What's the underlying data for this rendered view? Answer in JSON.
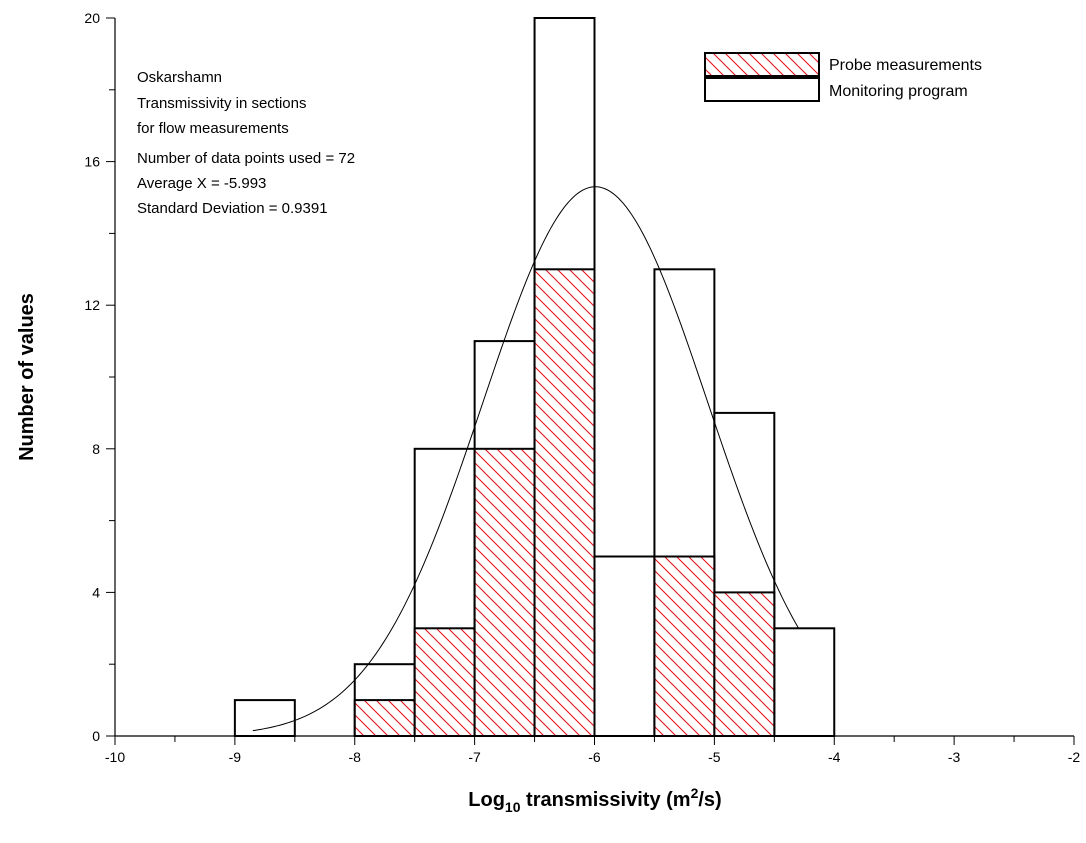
{
  "chart_data": {
    "type": "bar",
    "xlabel": {
      "prefix": "Log",
      "sub": "10",
      "mid": " transmissivity (m",
      "sup": "2",
      "suffix": "/s)"
    },
    "ylabel": "Number of values",
    "xlim": [
      -10,
      -2
    ],
    "ylim": [
      0,
      20
    ],
    "x_ticks": [
      -10,
      -9,
      -8,
      -7,
      -6,
      -5,
      -4,
      -3,
      -2
    ],
    "y_ticks": [
      0,
      4,
      8,
      12,
      16,
      20
    ],
    "bins": [
      [
        -9,
        -8.5
      ],
      [
        -8,
        -7.5
      ],
      [
        -7.5,
        -7
      ],
      [
        -7,
        -6.5
      ],
      [
        -6.5,
        -6
      ],
      [
        -6,
        -5.5
      ],
      [
        -5.5,
        -5
      ],
      [
        -5,
        -4.5
      ],
      [
        -4.5,
        -4
      ]
    ],
    "series": [
      {
        "name": "Probe measurements",
        "values": [
          0,
          1,
          3,
          8,
          13,
          0,
          5,
          4,
          0
        ],
        "fill": "hatch",
        "hatch_color": "#e8141c"
      },
      {
        "name": "Monitoring program",
        "values": [
          1,
          2,
          8,
          11,
          20,
          5,
          13,
          9,
          3
        ],
        "fill": "none"
      }
    ],
    "annotations": [
      "Oskarshamn",
      "Transmissivity in sections",
      "for flow measurements",
      "Number of data points used = 72",
      "Average X = -5.993",
      "Standard Deviation = 0.9391"
    ],
    "normal_curve": {
      "mean": -5.993,
      "sd": 0.9391,
      "x_range": [
        -8.85,
        -4.3
      ],
      "peak": 15.3
    },
    "legend_position": "top-right",
    "grid": false
  }
}
